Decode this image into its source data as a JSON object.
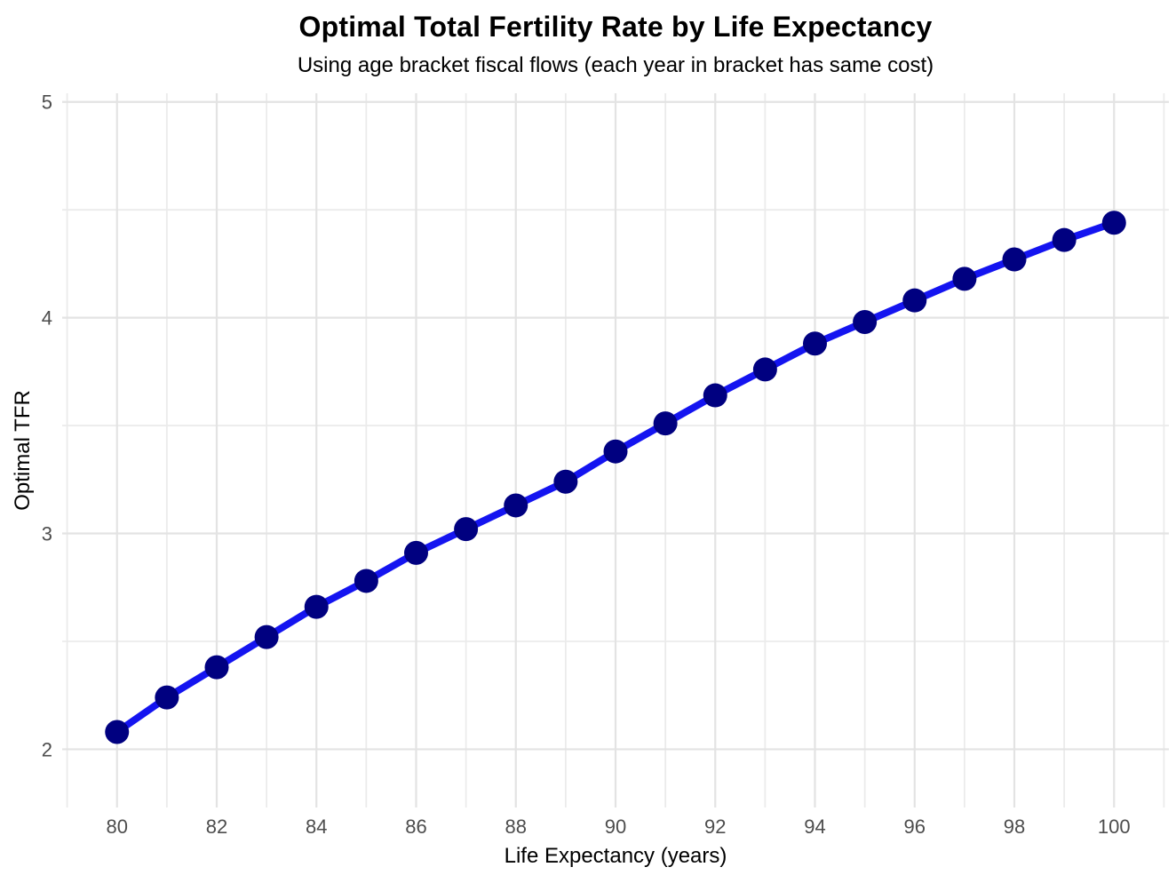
{
  "page": {
    "background_color": "#FFFFFF"
  },
  "chart_data": {
    "type": "line",
    "title": "Optimal Total Fertility Rate by Life Expectancy",
    "subtitle": "Using age bracket fiscal flows (each year in bracket has same cost)",
    "xlabel": "Life Expectancy (years)",
    "ylabel": "Optimal TFR",
    "series": [
      {
        "name": "Optimal TFR",
        "x": [
          80,
          81,
          82,
          83,
          84,
          85,
          86,
          87,
          88,
          89,
          90,
          91,
          92,
          93,
          94,
          95,
          96,
          97,
          98,
          99,
          100
        ],
        "y": [
          2.08,
          2.24,
          2.38,
          2.52,
          2.66,
          2.78,
          2.91,
          3.02,
          3.13,
          3.24,
          3.38,
          3.51,
          3.64,
          3.76,
          3.88,
          3.98,
          4.08,
          4.18,
          4.27,
          4.36,
          4.44
        ]
      }
    ],
    "x_ticks": [
      80,
      82,
      84,
      86,
      88,
      90,
      92,
      94,
      96,
      98,
      100
    ],
    "y_ticks": [
      2,
      3,
      4,
      5
    ],
    "x_minor_gridlines": [
      79,
      81,
      83,
      85,
      87,
      89,
      91,
      93,
      95,
      97,
      99,
      101
    ],
    "y_minor_gridlines": [
      2.5,
      3.5,
      4.5
    ],
    "x_domain": [
      78.9,
      101.1
    ],
    "y_domain": [
      1.73,
      5.04
    ],
    "grid": true,
    "legend_position": "none",
    "styles": {
      "line_color": "#1414F0",
      "point_color": "#000080",
      "grid_major_color": "#E3E3E3",
      "grid_minor_color": "#EBEBEB",
      "tick_label_color": "#4D4D4D",
      "title_color": "#000000",
      "background_color": "#FFFFFF",
      "line_width": 8,
      "point_radius": 13.5
    }
  }
}
